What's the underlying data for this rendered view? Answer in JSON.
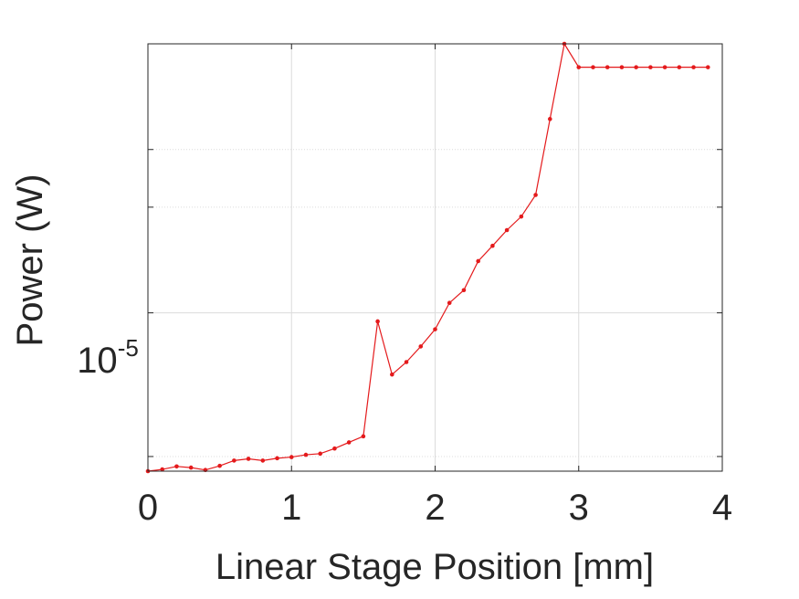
{
  "chart_data": {
    "type": "line",
    "title": "",
    "xlabel": "Linear Stage Position [mm]",
    "ylabel": "Power (W)",
    "xlim": [
      0,
      4
    ],
    "ylim": [
      6.75e-06,
      1.95e-05
    ],
    "y_scale": "log",
    "grid": true,
    "legend": "none",
    "x_ticks": [
      "0",
      "1",
      "2",
      "3",
      "4"
    ],
    "y_tick_label": {
      "base": "10",
      "exponent": "-5"
    },
    "y_ticks_unlabeled": [
      7e-06,
      1.3e-05,
      1.5e-05
    ],
    "series": [
      {
        "color": "#e41a1c",
        "marker": "dot",
        "x": [
          0,
          0.1,
          0.2,
          0.3,
          0.4,
          0.5,
          0.6,
          0.7,
          0.8,
          0.9,
          1.0,
          1.1,
          1.2,
          1.3,
          1.4,
          1.5,
          1.6,
          1.7,
          1.8,
          1.9,
          2.0,
          2.1,
          2.2,
          2.3,
          2.4,
          2.5,
          2.6,
          2.7,
          2.8,
          2.9,
          3.0,
          3.1,
          3.2,
          3.3,
          3.4,
          3.5,
          3.6,
          3.7,
          3.8,
          3.9
        ],
        "y": [
          6.75e-06,
          6.78e-06,
          6.83e-06,
          6.81e-06,
          6.77e-06,
          6.84e-06,
          6.93e-06,
          6.96e-06,
          6.93e-06,
          6.97e-06,
          6.99e-06,
          7.03e-06,
          7.05e-06,
          7.14e-06,
          7.25e-06,
          7.36e-06,
          9.79e-06,
          8.58e-06,
          8.85e-06,
          9.2e-06,
          9.6e-06,
          1.025e-05,
          1.058e-05,
          1.137e-05,
          1.181e-05,
          1.228e-05,
          1.27e-05,
          1.34e-05,
          1.618e-05,
          1.95e-05,
          1.84e-05,
          1.84e-05,
          1.84e-05,
          1.84e-05,
          1.84e-05,
          1.84e-05,
          1.84e-05,
          1.84e-05,
          1.84e-05,
          1.84e-05
        ]
      }
    ]
  }
}
